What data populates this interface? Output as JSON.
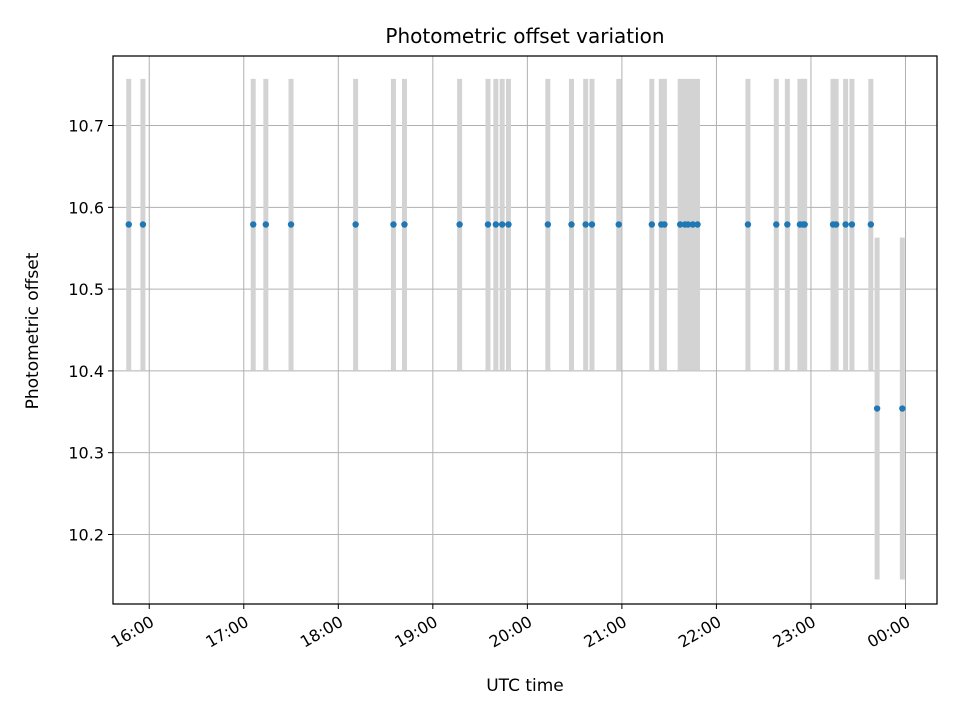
{
  "chart_data": {
    "type": "scatter",
    "title": "Photometric offset variation",
    "xlabel": "UTC time",
    "ylabel": "Photometric offset",
    "x_ticks": [
      "16:00",
      "17:00",
      "18:00",
      "19:00",
      "20:00",
      "21:00",
      "22:00",
      "23:00",
      "00:00"
    ],
    "y_ticks": [
      "10.2",
      "10.3",
      "10.4",
      "10.5",
      "10.6",
      "10.7"
    ],
    "x_range": [
      "15:37",
      "00:20"
    ],
    "ylim": [
      10.115,
      10.785
    ],
    "grid": true,
    "colors": {
      "points": "#1f77b4",
      "errorbars": "#d3d3d3",
      "grid": "#b0b0b0"
    },
    "series": [
      {
        "x": [
          "15:47",
          "15:56",
          "17:06",
          "17:14",
          "17:30",
          "18:11",
          "18:35",
          "18:42",
          "19:17",
          "19:35",
          "19:40",
          "19:44",
          "19:48",
          "20:13",
          "20:28",
          "20:37",
          "20:41",
          "20:58",
          "21:19",
          "21:25",
          "21:27",
          "21:37",
          "21:40",
          "21:42",
          "21:45",
          "21:48",
          "22:20",
          "22:38",
          "22:45",
          "22:53",
          "22:55",
          "22:56",
          "23:14",
          "23:16",
          "23:22",
          "23:26",
          "23:38",
          "23:42",
          "23:58"
        ],
        "y": [
          10.579,
          10.579,
          10.579,
          10.579,
          10.579,
          10.579,
          10.579,
          10.579,
          10.579,
          10.579,
          10.579,
          10.579,
          10.579,
          10.579,
          10.579,
          10.579,
          10.579,
          10.579,
          10.579,
          10.579,
          10.579,
          10.579,
          10.579,
          10.579,
          10.579,
          10.579,
          10.579,
          10.579,
          10.579,
          10.579,
          10.579,
          10.579,
          10.579,
          10.579,
          10.579,
          10.579,
          10.579,
          10.354,
          10.354
        ],
        "yerr": [
          0.178,
          0.178,
          0.178,
          0.178,
          0.178,
          0.178,
          0.178,
          0.178,
          0.178,
          0.178,
          0.178,
          0.178,
          0.178,
          0.178,
          0.178,
          0.178,
          0.178,
          0.178,
          0.178,
          0.178,
          0.178,
          0.178,
          0.178,
          0.178,
          0.178,
          0.178,
          0.178,
          0.178,
          0.178,
          0.178,
          0.178,
          0.178,
          0.178,
          0.178,
          0.178,
          0.178,
          0.178,
          0.209,
          0.209
        ]
      }
    ]
  }
}
